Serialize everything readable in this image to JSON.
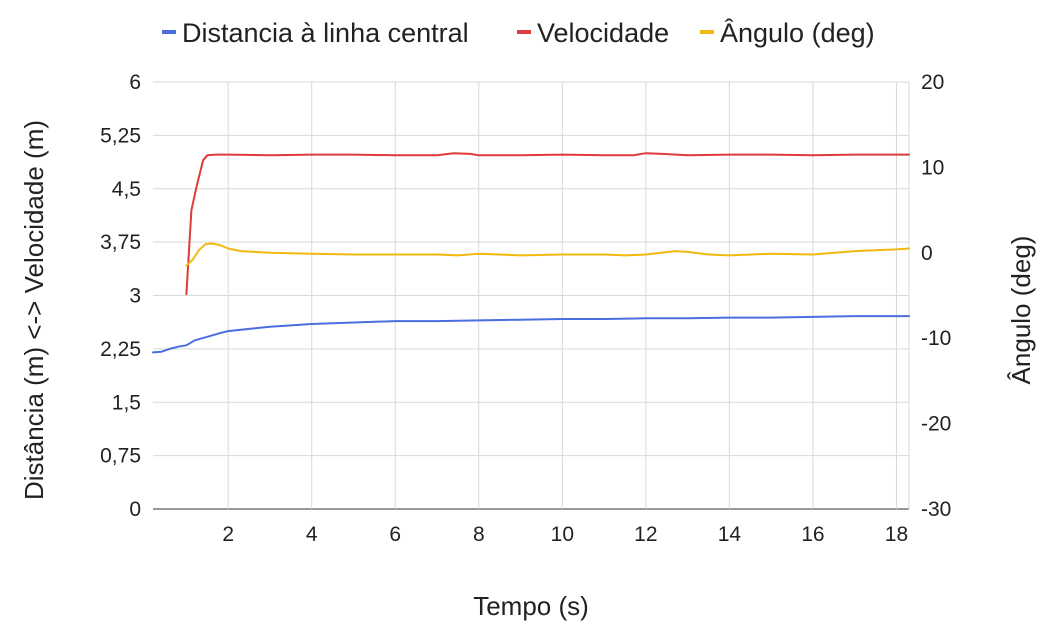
{
  "chart_data": {
    "type": "line",
    "title": "",
    "xlabel": "Tempo (s)",
    "ylabel_left": "Distância (m) <-> Velocidade (m)",
    "ylabel_right": "Ângulo (deg)",
    "xlim": [
      0.2,
      18.3
    ],
    "ylim_left": [
      0,
      6
    ],
    "ylim_right": [
      -30,
      20
    ],
    "x_ticks": [
      "2",
      "4",
      "6",
      "8",
      "10",
      "12",
      "14",
      "16",
      "18"
    ],
    "y_left_ticks": [
      "0",
      "0,75",
      "1,5",
      "2,25",
      "3",
      "3,75",
      "4,5",
      "5,25",
      "6"
    ],
    "y_right_ticks": [
      "-30",
      "-20",
      "-10",
      "0",
      "10",
      "20"
    ],
    "grid": true,
    "legend_position": "top",
    "series": [
      {
        "name": "Distancia à linha central",
        "axis": "left",
        "color": "#4a6ee0",
        "x": [
          0.2,
          0.4,
          0.6,
          0.8,
          1.0,
          1.2,
          1.5,
          1.8,
          2.0,
          2.5,
          3.0,
          3.5,
          4.0,
          4.5,
          5.0,
          6.0,
          7.0,
          8.0,
          9.0,
          10.0,
          11.0,
          12.0,
          13.0,
          14.0,
          15.0,
          16.0,
          17.0,
          18.0,
          18.3
        ],
        "y": [
          2.2,
          2.21,
          2.25,
          2.28,
          2.3,
          2.37,
          2.42,
          2.47,
          2.5,
          2.53,
          2.56,
          2.58,
          2.6,
          2.61,
          2.62,
          2.64,
          2.64,
          2.65,
          2.66,
          2.67,
          2.67,
          2.68,
          2.68,
          2.69,
          2.69,
          2.7,
          2.71,
          2.71,
          2.71
        ]
      },
      {
        "name": "Velocidade",
        "axis": "left",
        "color": "#e03b3b",
        "x": [
          1.0,
          1.12,
          1.25,
          1.4,
          1.5,
          1.7,
          2.0,
          3.0,
          4.0,
          5.0,
          6.0,
          7.0,
          7.4,
          7.8,
          8.0,
          9.0,
          10.0,
          11.0,
          11.7,
          12.0,
          12.4,
          13.0,
          14.0,
          15.0,
          16.0,
          17.0,
          18.0,
          18.3
        ],
        "y": [
          3.02,
          4.2,
          4.55,
          4.9,
          4.97,
          4.98,
          4.98,
          4.97,
          4.98,
          4.98,
          4.97,
          4.97,
          5.0,
          4.99,
          4.97,
          4.97,
          4.98,
          4.97,
          4.97,
          5.0,
          4.99,
          4.97,
          4.98,
          4.98,
          4.97,
          4.98,
          4.98,
          4.98
        ]
      },
      {
        "name": "Ângulo (deg)",
        "axis": "right",
        "color": "#f2b90f",
        "x": [
          1.0,
          1.15,
          1.3,
          1.45,
          1.6,
          1.8,
          2.0,
          2.3,
          3.0,
          4.0,
          5.0,
          6.0,
          7.0,
          7.5,
          8.0,
          9.0,
          10.0,
          11.0,
          11.5,
          12.0,
          12.7,
          13.0,
          13.5,
          14.0,
          15.0,
          16.0,
          17.0,
          18.0,
          18.3
        ],
        "y": [
          -1.5,
          -0.8,
          0.3,
          1.0,
          1.1,
          0.9,
          0.5,
          0.2,
          0.0,
          -0.1,
          -0.2,
          -0.2,
          -0.2,
          -0.3,
          -0.1,
          -0.3,
          -0.2,
          -0.2,
          -0.3,
          -0.2,
          0.2,
          0.1,
          -0.2,
          -0.3,
          -0.1,
          -0.2,
          0.2,
          0.4,
          0.5
        ]
      }
    ]
  }
}
